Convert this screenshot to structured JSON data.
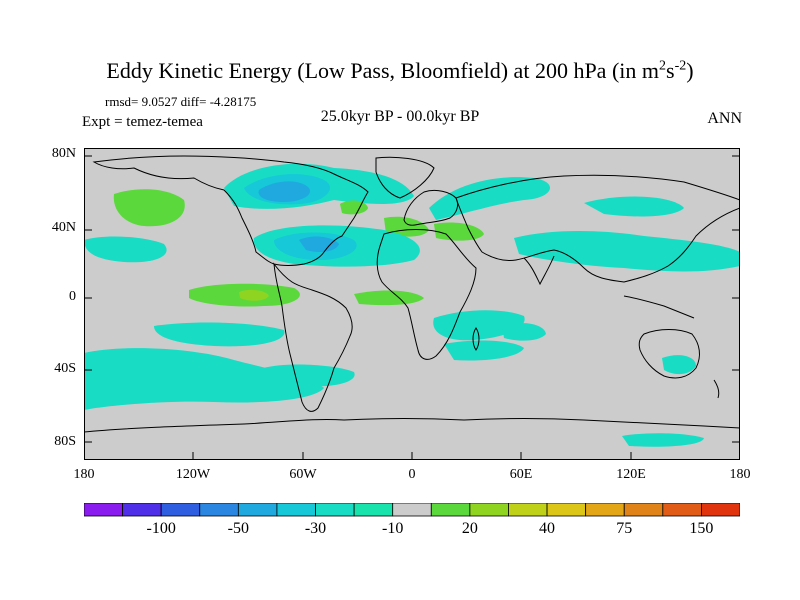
{
  "title": {
    "main": "Eddy Kinetic Energy (Low Pass, Bloomfield) at 200 hPa (in m",
    "sup1": "2",
    "mid": "s",
    "sup2": "-2",
    "close": ")"
  },
  "stats": "rmsd= 9.0527 diff= -4.28175",
  "expt": "Expt = temez-temea",
  "period": "25.0kyr BP - 00.0kyr BP",
  "season": "ANN",
  "y_labels": [
    "80N",
    "40N",
    "0",
    "40S",
    "80S"
  ],
  "x_labels": [
    "180",
    "120W",
    "60W",
    "0",
    "60E",
    "120E",
    "180"
  ],
  "colorbar": {
    "colors": [
      "#8a1cf0",
      "#4f2fe8",
      "#2f5fe0",
      "#2a86e0",
      "#1fa9df",
      "#16c8d8",
      "#19dcc4",
      "#18e3ac",
      "#cccccc",
      "#5bd83c",
      "#8fd421",
      "#bfd119",
      "#dcc617",
      "#e2a617",
      "#e0841a",
      "#e05c17",
      "#e0340f"
    ],
    "labels": [
      "-100",
      "-50",
      "-30",
      "-10",
      "20",
      "40",
      "75",
      "150"
    ]
  },
  "field_colors": {
    "ocean_neg": "#19dcc4",
    "neg_mid": "#16c8d8",
    "neg_strong": "#1fa9df",
    "pos_light": "#5bd83c",
    "pos_mid": "#8fd421",
    "background": "#cccccc"
  }
}
